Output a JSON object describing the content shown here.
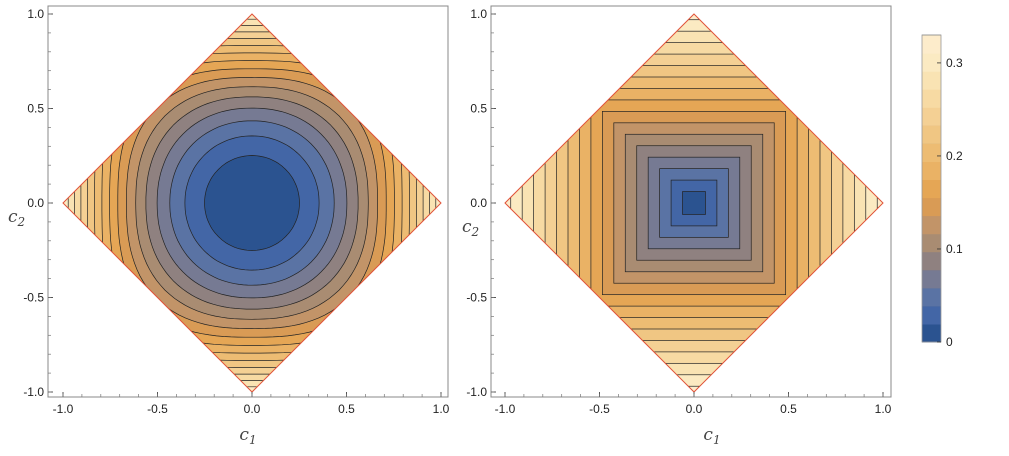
{
  "chart_data": [
    {
      "type": "contour",
      "title": "",
      "xlabel": "c",
      "xlabel_sub": "1",
      "ylabel": "c",
      "ylabel_sub": "2",
      "xlim": [
        -1.0,
        1.0
      ],
      "ylim": [
        -1.0,
        1.0
      ],
      "xticks": [
        "-1.0",
        "-0.5",
        "0.0",
        "0.5",
        "1.0"
      ],
      "yticks": [
        "-1.0",
        "-0.5",
        "0.0",
        "0.5",
        "1.0"
      ],
      "domain": "|c1| + |c2| <= 1",
      "contour_levels": [
        0.02,
        0.04,
        0.06,
        0.08,
        0.1,
        0.12,
        0.14,
        0.16,
        0.18,
        0.2,
        0.22,
        0.24,
        0.26,
        0.28,
        0.3,
        0.32
      ],
      "contour_shape": "rounded (circular near center, diamond-like near edge)",
      "value_range": [
        0,
        0.33
      ],
      "grid": false
    },
    {
      "type": "contour",
      "title": "",
      "xlabel": "c",
      "xlabel_sub": "1",
      "ylabel": "c",
      "ylabel_sub": "2",
      "xlim": [
        -1.0,
        1.0
      ],
      "ylim": [
        -1.0,
        1.0
      ],
      "xticks": [
        "-1.0",
        "-0.5",
        "0.0",
        "0.5",
        "1.0"
      ],
      "yticks": [
        "-1.0",
        "-0.5",
        "0.0",
        "0.5",
        "1.0"
      ],
      "domain": "|c1| + |c2| <= 1",
      "contour_levels": [
        0.02,
        0.04,
        0.06,
        0.08,
        0.1,
        0.12,
        0.14,
        0.16,
        0.18,
        0.2,
        0.22,
        0.24,
        0.26,
        0.28,
        0.3,
        0.32
      ],
      "contour_shape": "square (max-norm)",
      "value_range": [
        0,
        0.33
      ],
      "grid": false
    }
  ],
  "legend": {
    "type": "colorbar",
    "min": 0,
    "max": 0.33,
    "ticks": [
      {
        "value": 0,
        "label": "0"
      },
      {
        "value": 0.1,
        "label": "0.1"
      },
      {
        "value": 0.2,
        "label": "0.2"
      },
      {
        "value": 0.3,
        "label": "0.3"
      }
    ],
    "levels": 16,
    "colors": [
      "#2b5390",
      "#4366a6",
      "#5a73a4",
      "#767a93",
      "#8f8180",
      "#a98c72",
      "#c29468",
      "#d99b55",
      "#e5a655",
      "#eab265",
      "#edbc73",
      "#f0c683",
      "#f4d094",
      "#f7daa3",
      "#f9e3b3",
      "#fbeac2",
      "#fdeccb"
    ]
  }
}
